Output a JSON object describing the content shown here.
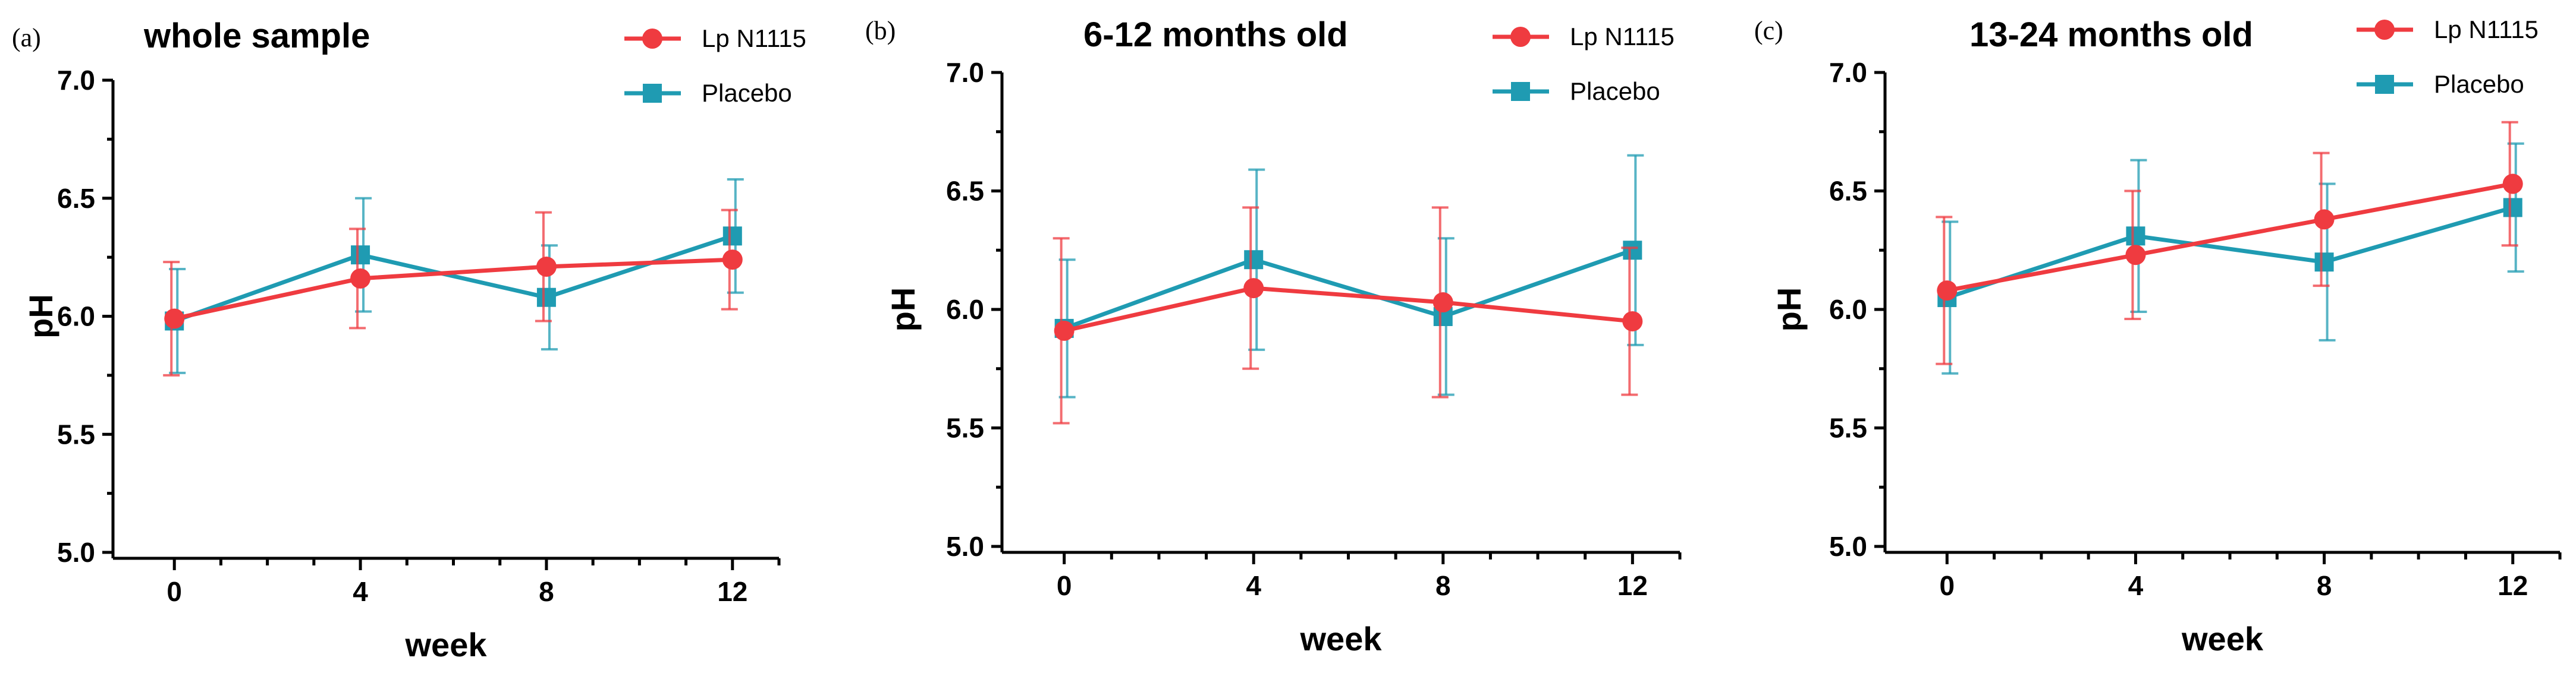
{
  "chart_data": [
    {
      "type": "line",
      "panel_label": "(a)",
      "title": "whole sample",
      "xlabel": "week",
      "ylabel": "pH",
      "x": [
        0,
        4,
        8,
        12
      ],
      "xticks": [
        "0",
        "4",
        "8",
        "12"
      ],
      "yticks": [
        "5.0",
        "5.5",
        "6.0",
        "6.5",
        "7.0"
      ],
      "ylim": [
        5.0,
        7.0
      ],
      "xlim": [
        -1,
        13
      ],
      "legend_position": "top-right",
      "series": [
        {
          "name": "Lp N1115",
          "color": "#ef3b40",
          "marker": "circle",
          "values": [
            5.99,
            6.16,
            6.21,
            6.24
          ],
          "errors": [
            0.24,
            0.21,
            0.23,
            0.21
          ]
        },
        {
          "name": "Placebo",
          "color": "#1f9bb2",
          "marker": "square",
          "values": [
            5.98,
            6.26,
            6.08,
            6.34
          ],
          "errors": [
            0.22,
            0.24,
            0.22,
            0.24
          ]
        }
      ]
    },
    {
      "type": "line",
      "panel_label": "(b)",
      "title": "6-12 months old",
      "xlabel": "week",
      "ylabel": "pH",
      "x": [
        0,
        4,
        8,
        12
      ],
      "xticks": [
        "0",
        "4",
        "8",
        "12"
      ],
      "yticks": [
        "5.0",
        "5.5",
        "6.0",
        "6.5",
        "7.0"
      ],
      "ylim": [
        5.0,
        7.0
      ],
      "xlim": [
        -1,
        13
      ],
      "legend_position": "top-right",
      "series": [
        {
          "name": "Lp N1115",
          "color": "#ef3b40",
          "marker": "circle",
          "values": [
            5.91,
            6.09,
            6.03,
            5.95
          ],
          "errors": [
            0.39,
            0.34,
            0.4,
            0.31
          ]
        },
        {
          "name": "Placebo",
          "color": "#1f9bb2",
          "marker": "square",
          "values": [
            5.92,
            6.21,
            5.97,
            6.25
          ],
          "errors": [
            0.29,
            0.38,
            0.33,
            0.4
          ]
        }
      ]
    },
    {
      "type": "line",
      "panel_label": "(c)",
      "title": "13-24 months old",
      "xlabel": "week",
      "ylabel": "pH",
      "x": [
        0,
        4,
        8,
        12
      ],
      "xticks": [
        "0",
        "4",
        "8",
        "12"
      ],
      "yticks": [
        "5.0",
        "5.5",
        "6.0",
        "6.5",
        "7.0"
      ],
      "ylim": [
        5.0,
        7.0
      ],
      "xlim": [
        -1,
        13
      ],
      "legend_position": "top-right",
      "series": [
        {
          "name": "Lp N1115",
          "color": "#ef3b40",
          "marker": "circle",
          "values": [
            6.08,
            6.23,
            6.38,
            6.53
          ],
          "errors": [
            0.31,
            0.27,
            0.28,
            0.26
          ]
        },
        {
          "name": "Placebo",
          "color": "#1f9bb2",
          "marker": "square",
          "values": [
            6.05,
            6.31,
            6.2,
            6.43
          ],
          "errors": [
            0.32,
            0.32,
            0.33,
            0.27
          ]
        }
      ]
    }
  ]
}
